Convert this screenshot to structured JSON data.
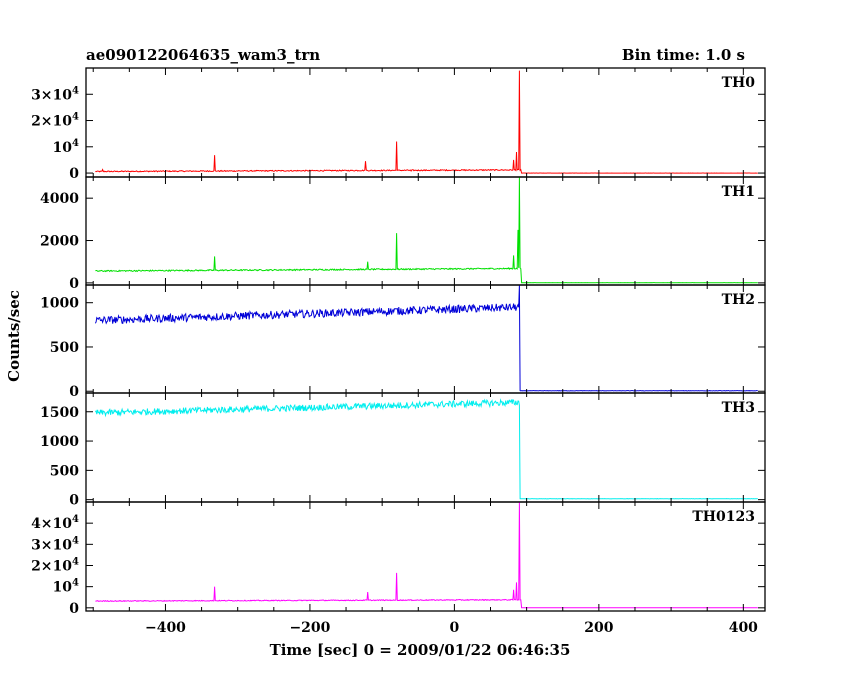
{
  "header": {
    "title": "ae090122064635_wam3_trn",
    "bin_time": "Bin time: 1.0 s"
  },
  "chart_data": {
    "type": "line",
    "title": "ae090122064635_wam3_trn",
    "subtitle": "Bin time: 1.0 s",
    "xlabel": "Time [sec] 0 = 2009/01/22 06:46:35",
    "ylabel": "Counts/sec",
    "xlim": [
      -510,
      430
    ],
    "xticks": [
      -400,
      -200,
      0,
      200,
      400
    ],
    "xtick_labels": [
      "−400",
      "−200",
      "0",
      "200",
      "400"
    ],
    "grid": false,
    "panels": [
      {
        "name": "TH0",
        "color": "#ff0000",
        "ylim": [
          -1500,
          40000
        ],
        "ytick_labels": [
          {
            "value": 0,
            "base": "0",
            "exp": ""
          },
          {
            "value": 10000,
            "base": "10",
            "exp": "4"
          },
          {
            "value": 20000,
            "base": "2×10",
            "exp": "4"
          },
          {
            "value": 30000,
            "base": "3×10",
            "exp": "4"
          }
        ],
        "baseline_start": 600,
        "baseline_end": 1200,
        "noise": 200,
        "pre_end": 93,
        "post_level": 0,
        "spikes": [
          [
            -487,
            1300
          ],
          [
            -332,
            6800
          ],
          [
            -123,
            4500
          ],
          [
            -80,
            12000
          ],
          [
            -60,
            800
          ],
          [
            82,
            5000
          ],
          [
            86,
            8000
          ],
          [
            90,
            39000
          ]
        ]
      },
      {
        "name": "TH1",
        "color": "#00e000",
        "ylim": [
          -100,
          5000
        ],
        "ytick_labels": [
          {
            "value": 0,
            "base": "0",
            "exp": ""
          },
          {
            "value": 2000,
            "base": "2000",
            "exp": ""
          },
          {
            "value": 4000,
            "base": "4000",
            "exp": ""
          }
        ],
        "baseline_start": 560,
        "baseline_end": 680,
        "noise": 30,
        "pre_end": 93,
        "post_level": 10,
        "spikes": [
          [
            -332,
            1250
          ],
          [
            -120,
            1000
          ],
          [
            -80,
            2350
          ],
          [
            82,
            1300
          ],
          [
            88,
            2500
          ],
          [
            90,
            5000
          ]
        ]
      },
      {
        "name": "TH2",
        "color": "#0000d8",
        "ylim": [
          -20,
          1200
        ],
        "ytick_labels": [
          {
            "value": 0,
            "base": "0",
            "exp": ""
          },
          {
            "value": 500,
            "base": "500",
            "exp": ""
          },
          {
            "value": 1000,
            "base": "1000",
            "exp": ""
          }
        ],
        "baseline_start": 800,
        "baseline_end": 950,
        "noise": 45,
        "pre_end": 91,
        "post_level": 5,
        "spikes": [
          [
            90,
            1200
          ]
        ]
      },
      {
        "name": "TH3",
        "color": "#00eeee",
        "ylim": [
          -40,
          1820
        ],
        "ytick_labels": [
          {
            "value": 0,
            "base": "0",
            "exp": ""
          },
          {
            "value": 500,
            "base": "500",
            "exp": ""
          },
          {
            "value": 1000,
            "base": "1000",
            "exp": ""
          },
          {
            "value": 1500,
            "base": "1500",
            "exp": ""
          }
        ],
        "baseline_start": 1480,
        "baseline_end": 1660,
        "noise": 55,
        "pre_end": 91,
        "post_level": 15,
        "spikes": []
      },
      {
        "name": "TH0123",
        "color": "#ff00ff",
        "ylim": [
          -1500,
          50000
        ],
        "ytick_labels": [
          {
            "value": 0,
            "base": "0",
            "exp": ""
          },
          {
            "value": 10000,
            "base": "10",
            "exp": "4"
          },
          {
            "value": 20000,
            "base": "2×10",
            "exp": "4"
          },
          {
            "value": 30000,
            "base": "3×10",
            "exp": "4"
          },
          {
            "value": 40000,
            "base": "4×10",
            "exp": "4"
          }
        ],
        "baseline_start": 3200,
        "baseline_end": 3800,
        "noise": 200,
        "pre_end": 93,
        "post_level": 50,
        "spikes": [
          [
            -332,
            10000
          ],
          [
            -120,
            7500
          ],
          [
            -80,
            16500
          ],
          [
            82,
            8500
          ],
          [
            86,
            12000
          ],
          [
            90,
            50000
          ]
        ]
      }
    ]
  }
}
